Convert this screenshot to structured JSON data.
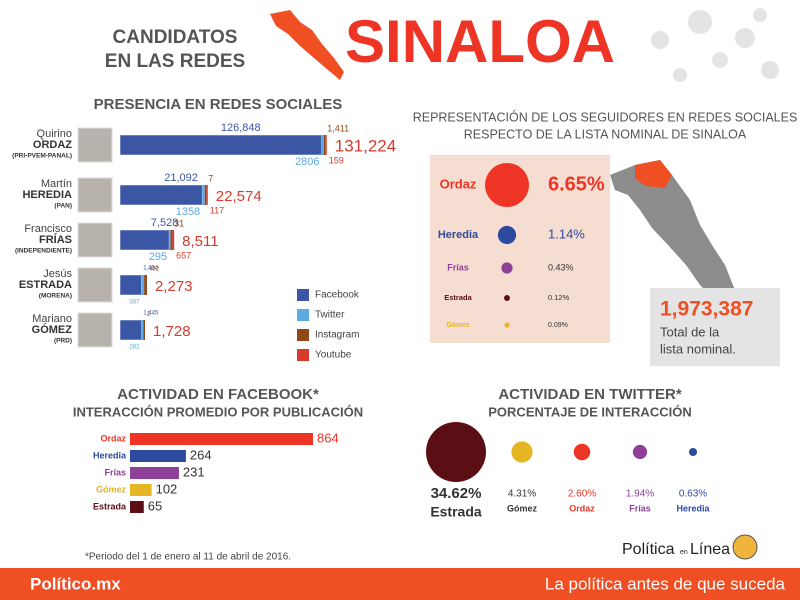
{
  "header": {
    "title_lines": [
      "CANDIDATOS",
      "EN LAS REDES"
    ],
    "state": "SINALOA"
  },
  "chart_data": [
    {
      "type": "stacked_bar_h",
      "title": "PRESENCIA EN REDES SOCIALES",
      "scale": "sqrt",
      "first_names": [
        "Quirino",
        "Martín",
        "Francisco",
        "Jesús",
        "Mariano"
      ],
      "categories": [
        "ORDAZ",
        "HEREDIA",
        "FRÍAS",
        "ESTRADA",
        "GÓMEZ"
      ],
      "parties": [
        "(PRI-PVEM-PANAL)",
        "(PAN)",
        "(INDEPENDIENTE)",
        "(MORENA)",
        "(PRD)"
      ],
      "series": [
        {
          "name": "Facebook",
          "color": "#3b56a5",
          "values": [
            126848,
            21092,
            7528,
            1434,
            1445
          ],
          "value_labels": [
            "126,848",
            "21,092",
            "7,528",
            "1,434",
            "1,445"
          ]
        },
        {
          "name": "Twitter",
          "color": "#5baae2",
          "values": [
            2806,
            1358,
            295,
            387,
            282
          ]
        },
        {
          "name": "Instagram",
          "color": "#8b4a16",
          "values": [
            1411,
            7,
            31,
            452,
            1
          ],
          "value_labels": [
            "1,411",
            "7",
            "31",
            "452",
            "1"
          ]
        },
        {
          "name": "Youtube",
          "color": "#d83b2b",
          "values": [
            159,
            117,
            657,
            null,
            null
          ]
        }
      ],
      "total_labels": [
        "131,224",
        "22,574",
        "8,511",
        "2,273",
        "1,728"
      ]
    },
    {
      "type": "bubble_list",
      "title_lines": [
        "REPRESENTACIÓN DE LOS SEGUIDORES EN REDES SOCIALES",
        "RESPECTO DE LA LISTA NOMINAL DE SINALOA"
      ],
      "categories": [
        "Ordaz",
        "Heredia",
        "Frías",
        "Estrada",
        "Gómez"
      ],
      "colors": [
        "#ee3424",
        "#2e4a9f",
        "#8e3f97",
        "#5b0e14",
        "#e5b524"
      ],
      "values": [
        6.65,
        1.14,
        0.43,
        0.12,
        0.09
      ],
      "value_labels": [
        "6.65%",
        "1.14%",
        "0.43%",
        "0.12%",
        "0.09%"
      ],
      "total": {
        "label": "1,973,387",
        "caption_lines": [
          "Total de la",
          "lista nominal."
        ]
      }
    },
    {
      "type": "bar_h",
      "title": "ACTIVIDAD EN FACEBOOK*",
      "subtitle": "INTERACCIÓN PROMEDIO POR PUBLICACIÓN",
      "categories": [
        "Ordaz",
        "Heredia",
        "Frías",
        "Gómez",
        "Estrada"
      ],
      "colors": [
        "#ee3424",
        "#2e4a9f",
        "#8e3f97",
        "#e5b524",
        "#5b0e14"
      ],
      "values": [
        864,
        264,
        231,
        102,
        65
      ]
    },
    {
      "type": "bubble_row",
      "title": "ACTIVIDAD EN TWITTER*",
      "subtitle": "PORCENTAJE DE INTERACCIÓN",
      "categories": [
        "Estrada",
        "Gómez",
        "Ordaz",
        "Frías",
        "Heredia"
      ],
      "colors": [
        "#5b0e14",
        "#e5b524",
        "#ee3424",
        "#8e3f97",
        "#2e4a9f"
      ],
      "values": [
        34.62,
        4.31,
        2.6,
        1.94,
        0.63
      ],
      "value_labels": [
        "34.62%",
        "4.31%",
        "2.60%",
        "1.94%",
        "0.63%"
      ]
    }
  ],
  "footnote": "*Periodo del 1 de enero al 11 de abril de 2016.",
  "logo": {
    "left": "Política",
    "middle": "en",
    "right": "Línea"
  },
  "footer": {
    "brand": "Político.mx",
    "tagline": "La política antes de que suceda"
  }
}
